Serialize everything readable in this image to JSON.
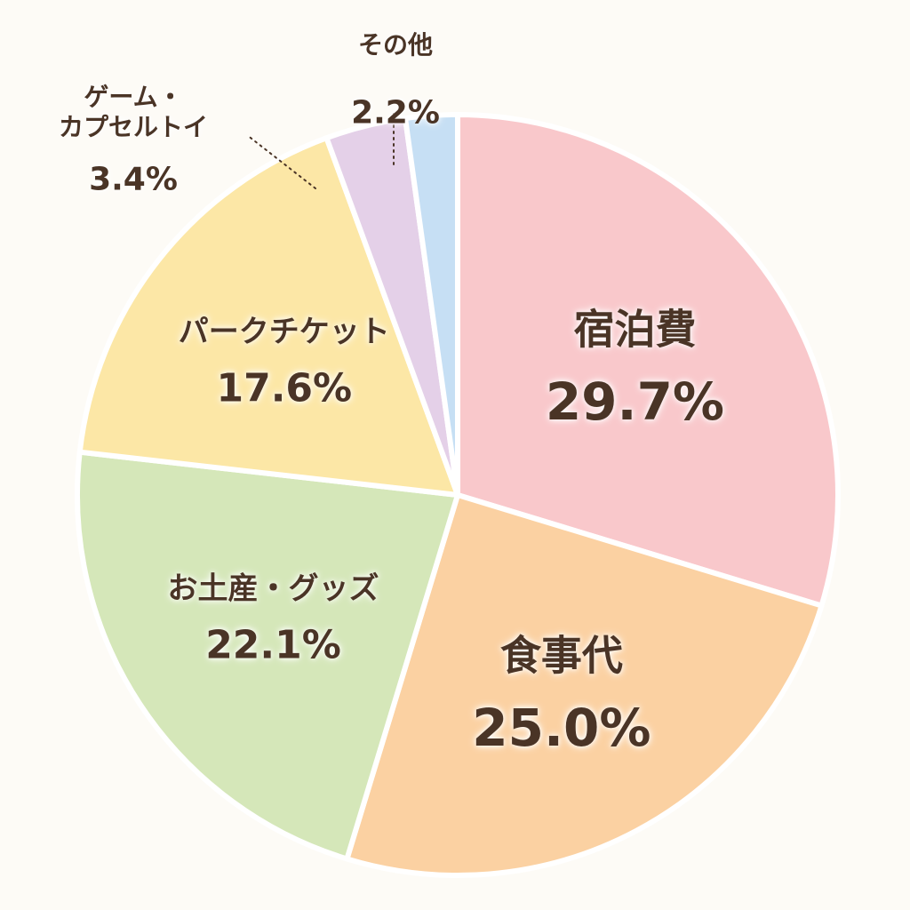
{
  "chart_data": {
    "type": "pie",
    "categories": [
      "宿泊費",
      "食事代",
      "お土産・グッズ",
      "パークチケット",
      "ゲーム・\nカプセルトイ",
      "その他"
    ],
    "values": [
      29.7,
      25.0,
      22.1,
      17.6,
      3.4,
      2.2
    ],
    "value_labels": [
      "29.7%",
      "25.0%",
      "22.1%",
      "17.6%",
      "3.4%",
      "2.2%"
    ],
    "colors": [
      "#f9c8cb",
      "#fbd1a2",
      "#d5e7b9",
      "#fce7a6",
      "#e4d0e8",
      "#c6dff4"
    ]
  }
}
